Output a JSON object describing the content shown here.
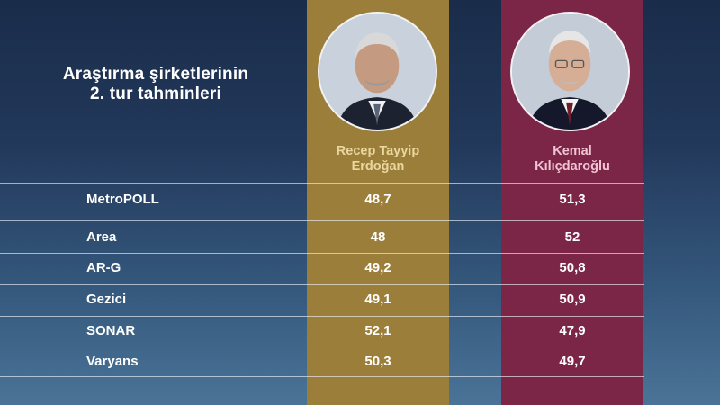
{
  "title": {
    "line1": "Araştırma şirketlerinin",
    "line2": "2. tur tahminleri"
  },
  "colors": {
    "background": "#22385a",
    "candidate_a": "#9b7e3a",
    "candidate_b": "#7b2547"
  },
  "candidates": [
    {
      "line1": "Recep Tayyip",
      "line2": "Erdoğan",
      "photo": "portrait-photo"
    },
    {
      "line1": "Kemal",
      "line2": "Kılıçdaroğlu",
      "photo": "portrait-photo"
    }
  ],
  "chart_data": {
    "type": "table",
    "title": "Araştırma şirketlerinin 2. tur tahminleri",
    "columns": [
      "Recep Tayyip Erdoğan",
      "Kemal Kılıçdaroğlu"
    ],
    "rows": [
      {
        "label": "MetroPOLL",
        "values": [
          "48,7",
          "51,3"
        ]
      },
      {
        "label": "Area",
        "values": [
          "48",
          "52"
        ]
      },
      {
        "label": "AR-G",
        "values": [
          "49,2",
          "50,8"
        ]
      },
      {
        "label": "Gezici",
        "values": [
          "49,1",
          "50,9"
        ]
      },
      {
        "label": "SONAR",
        "values": [
          "52,1",
          "47,9"
        ]
      },
      {
        "label": "Varyans",
        "values": [
          "50,3",
          "49,7"
        ]
      }
    ]
  }
}
